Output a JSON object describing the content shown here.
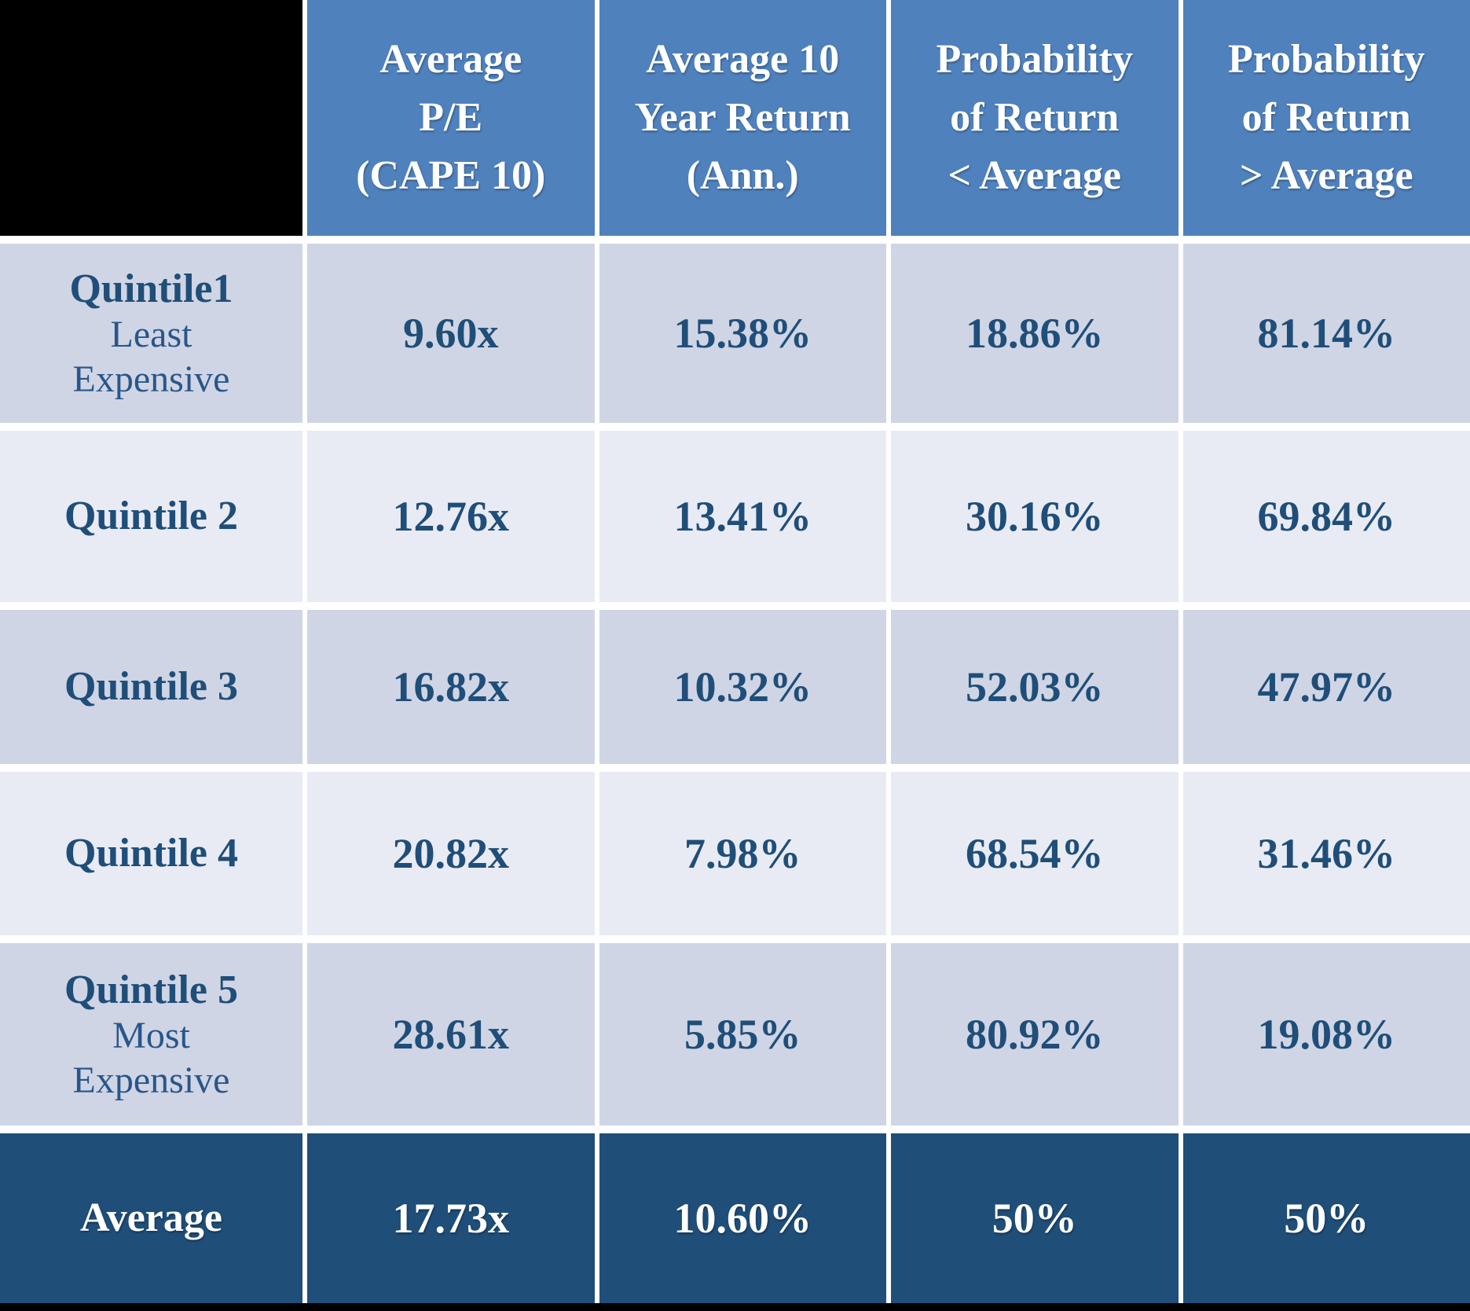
{
  "colors": {
    "header_bg": "#4F81BD",
    "row_dark": "#CFD5E4",
    "row_light": "#E9EBF4",
    "footer_bg": "#1F4E79",
    "value_text": "#1F4E79",
    "header_text": "#FFFFFF",
    "corner_bg": "#000000"
  },
  "header": {
    "cells": [
      "",
      "Average\nP/E\n(CAPE 10)",
      "Average 10\nYear Return\n(Ann.)",
      "Probability\nof Return\n< Average",
      "Probability\nof Return\n> Average"
    ]
  },
  "rows": [
    {
      "label": "Quintile1",
      "sublabel": "Least\nExpensive",
      "values": [
        "9.60x",
        "15.38%",
        "18.86%",
        "81.14%"
      ]
    },
    {
      "label": "Quintile 2",
      "sublabel": "",
      "values": [
        "12.76x",
        "13.41%",
        "30.16%",
        "69.84%"
      ]
    },
    {
      "label": "Quintile 3",
      "sublabel": "",
      "values": [
        "16.82x",
        "10.32%",
        "52.03%",
        "47.97%"
      ]
    },
    {
      "label": "Quintile 4",
      "sublabel": "",
      "values": [
        "20.82x",
        "7.98%",
        "68.54%",
        "31.46%"
      ]
    },
    {
      "label": "Quintile 5",
      "sublabel": "Most\nExpensive",
      "values": [
        "28.61x",
        "5.85%",
        "80.92%",
        "19.08%"
      ]
    }
  ],
  "footer": {
    "label": "Average",
    "values": [
      "17.73x",
      "10.60%",
      "50%",
      "50%"
    ]
  },
  "chart_data": {
    "type": "table",
    "title": "CAPE 10 valuation quintiles vs. subsequent 10-year returns",
    "columns": [
      "",
      "Average P/E (CAPE 10)",
      "Average 10 Year Return (Ann.)",
      "Probability of Return < Average",
      "Probability of Return > Average"
    ],
    "rows": [
      [
        "Quintile1 Least Expensive",
        "9.60x",
        "15.38%",
        "18.86%",
        "81.14%"
      ],
      [
        "Quintile 2",
        "12.76x",
        "13.41%",
        "30.16%",
        "69.84%"
      ],
      [
        "Quintile 3",
        "16.82x",
        "10.32%",
        "52.03%",
        "47.97%"
      ],
      [
        "Quintile 4",
        "20.82x",
        "7.98%",
        "68.54%",
        "31.46%"
      ],
      [
        "Quintile 5 Most Expensive",
        "28.61x",
        "5.85%",
        "80.92%",
        "19.08%"
      ],
      [
        "Average",
        "17.73x",
        "10.60%",
        "50%",
        "50%"
      ]
    ],
    "numeric": {
      "categories": [
        "Quintile 1",
        "Quintile 2",
        "Quintile 3",
        "Quintile 4",
        "Quintile 5",
        "Average"
      ],
      "series": [
        {
          "name": "Average P/E (CAPE 10, x)",
          "values": [
            9.6,
            12.76,
            16.82,
            20.82,
            28.61,
            17.73
          ]
        },
        {
          "name": "Average 10 Year Return Ann. (%)",
          "values": [
            15.38,
            13.41,
            10.32,
            7.98,
            5.85,
            10.6
          ]
        },
        {
          "name": "Probability of Return < Average (%)",
          "values": [
            18.86,
            30.16,
            52.03,
            68.54,
            80.92,
            50
          ]
        },
        {
          "name": "Probability of Return > Average (%)",
          "values": [
            81.14,
            69.84,
            47.97,
            31.46,
            19.08,
            50
          ]
        }
      ]
    }
  }
}
